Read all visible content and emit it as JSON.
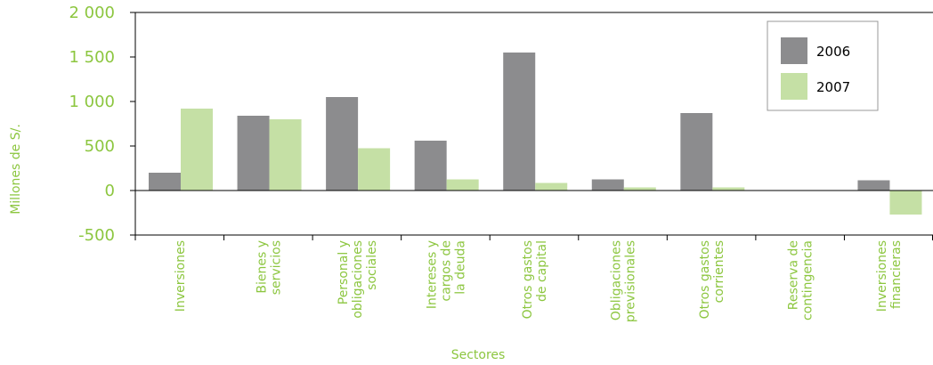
{
  "chart_data": {
    "type": "bar",
    "title": "",
    "xlabel": "Sectores",
    "ylabel": "Millones de S/.",
    "ylim": [
      -500,
      2000
    ],
    "yticks": [
      2000,
      1500,
      1000,
      500,
      0,
      -500
    ],
    "ytick_labels": [
      "2 000",
      "1 500",
      "1 000",
      "500",
      "0",
      "-500"
    ],
    "categories": [
      [
        "Inversiones"
      ],
      [
        "Bienes y",
        "servicios"
      ],
      [
        "Personal y",
        "obligaciones",
        "sociales"
      ],
      [
        "Intereses y",
        "cargos de",
        "la deuda"
      ],
      [
        "Otros gastos",
        "de capital"
      ],
      [
        "Obligaciones",
        "previsionales"
      ],
      [
        "Otros gastos",
        "corrientes"
      ],
      [
        "Reserva de",
        "contingencia"
      ],
      [
        "Inversiones",
        "financieras"
      ]
    ],
    "series": [
      {
        "name": "2006",
        "color": "#8c8c8e",
        "values": [
          200,
          840,
          1050,
          560,
          1550,
          125,
          870,
          0,
          115
        ]
      },
      {
        "name": "2007",
        "color": "#c5e0a5",
        "values": [
          920,
          800,
          475,
          125,
          85,
          35,
          35,
          0,
          -270
        ]
      }
    ],
    "grid": false,
    "legend_position": "top-right",
    "axis_color": "#000000",
    "text_color": "#8cc63f"
  }
}
